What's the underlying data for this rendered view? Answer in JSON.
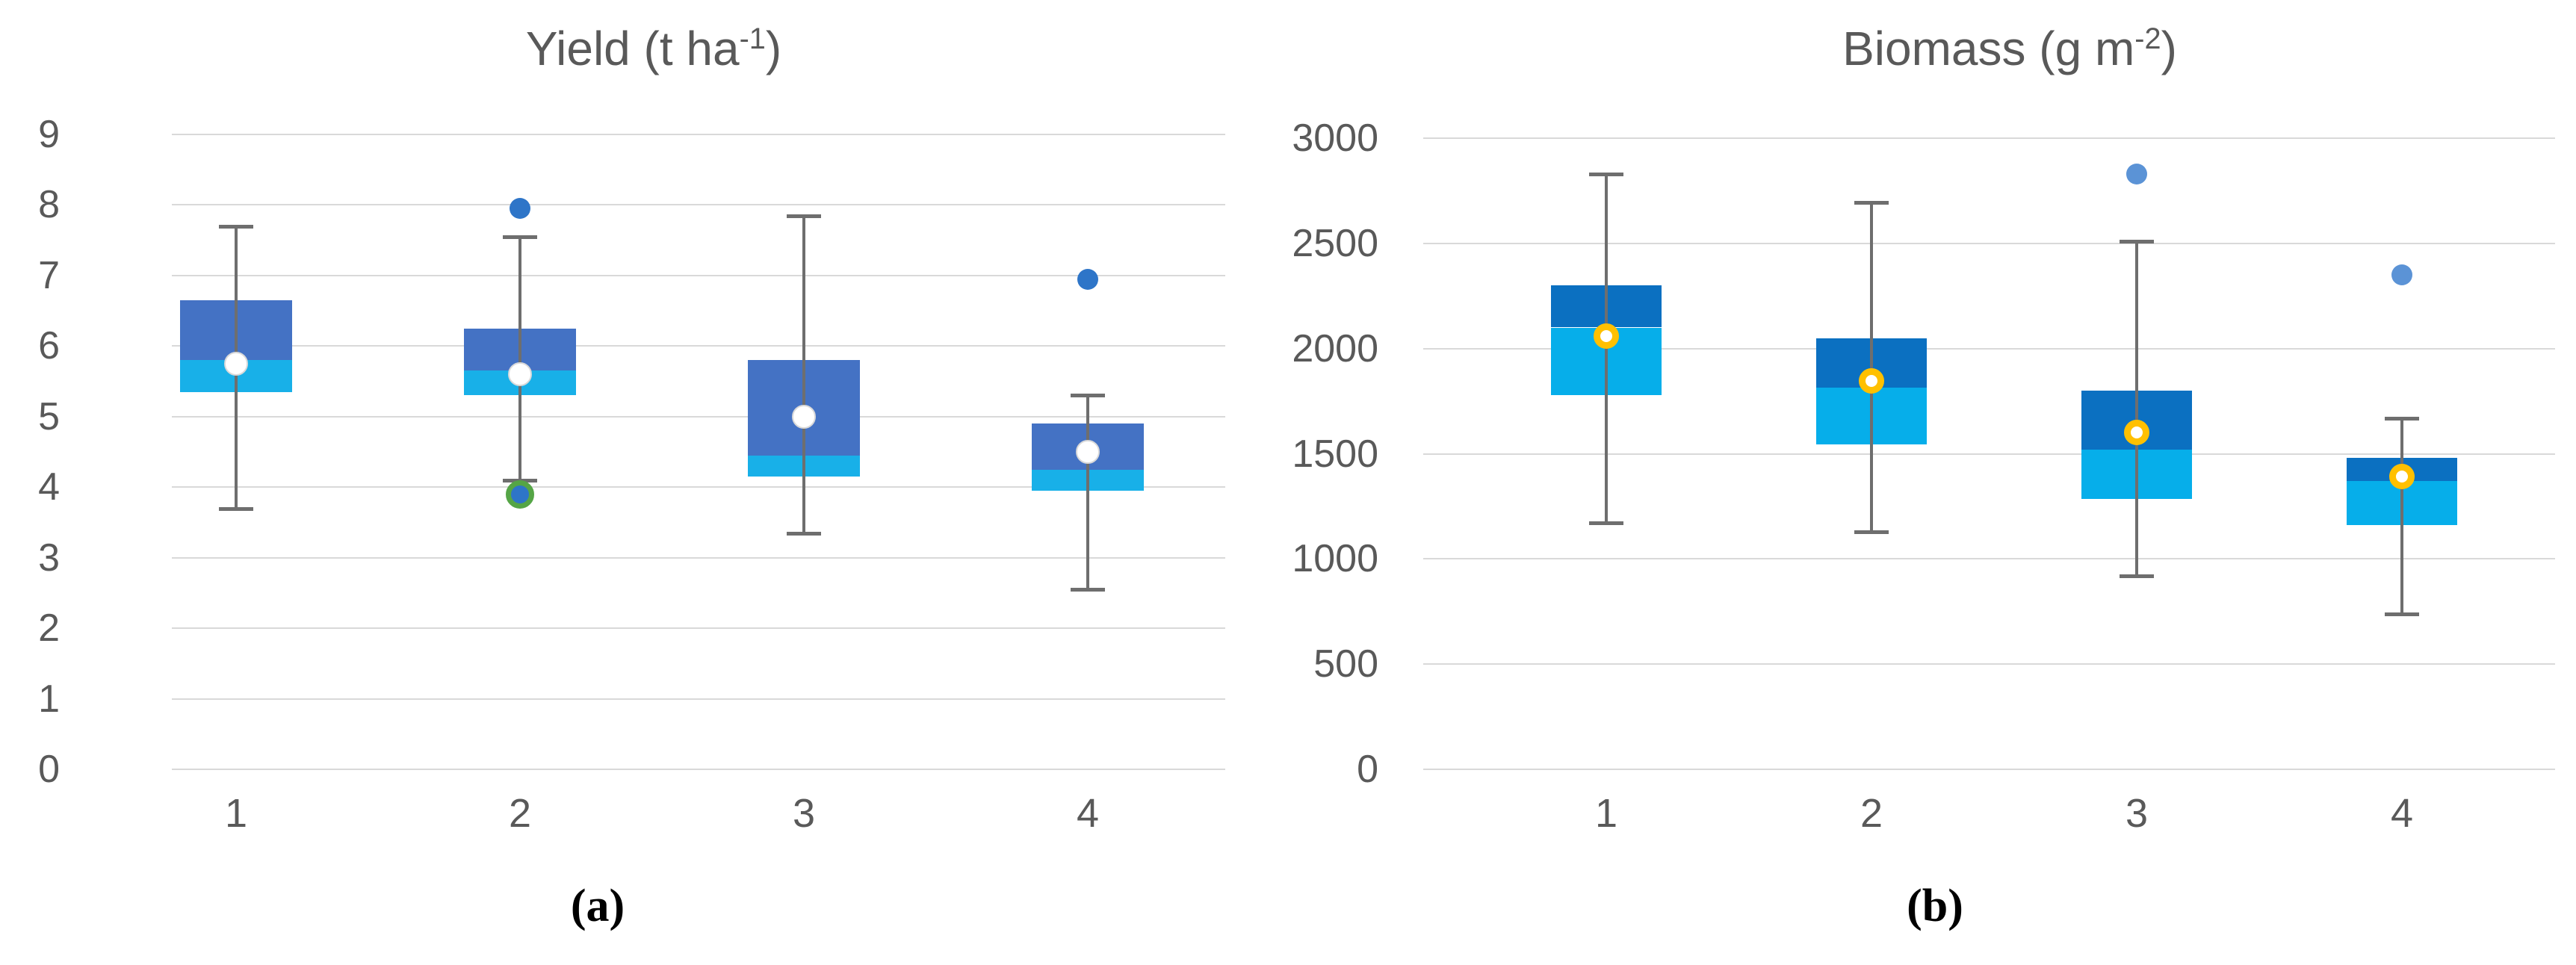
{
  "page": {
    "background": "#ffffff",
    "gridline_color": "#d9d9d9",
    "axis_text_color": "#595959"
  },
  "chart_data": [
    {
      "id": "a",
      "type": "box",
      "title": {
        "main": "Yield (t ha",
        "sup": "-1",
        "end": ")",
        "full": "Yield (t ha⁻¹)"
      },
      "panel_label": "(a)",
      "ylim": [
        0,
        9
      ],
      "ytick_step": 1,
      "yticks": [
        9,
        8,
        7,
        6,
        5,
        4,
        3,
        2,
        1,
        0
      ],
      "categories": [
        "1",
        "2",
        "3",
        "4"
      ],
      "grid": true,
      "legend": false,
      "mean_marker": "white-dot",
      "colors": {
        "upper_box": "#4472C4",
        "lower_box": "#18B0E8",
        "whisker": "#6E6E6E",
        "grid": "#D9D9D9",
        "mean_fill": "#FFFFFF",
        "mean_edge": "#D9D9D9",
        "outlier": "#2E75C8",
        "outlier_ring": "#55A546"
      },
      "boxes": [
        {
          "category": "1",
          "whisker_low": 3.7,
          "q1": 5.35,
          "median": 5.8,
          "q3": 6.65,
          "whisker_high": 7.7,
          "mean": 5.75,
          "outliers": []
        },
        {
          "category": "2",
          "whisker_low": 4.1,
          "q1": 5.3,
          "median": 5.65,
          "q3": 6.25,
          "whisker_high": 7.55,
          "mean": 5.6,
          "outliers": [
            {
              "value": 7.95,
              "style": "blue"
            },
            {
              "value": 3.9,
              "style": "blue-green-ring"
            }
          ]
        },
        {
          "category": "3",
          "whisker_low": 3.35,
          "q1": 4.15,
          "median": 4.45,
          "q3": 5.8,
          "whisker_high": 7.85,
          "mean": 5.0,
          "outliers": []
        },
        {
          "category": "4",
          "whisker_low": 2.55,
          "q1": 3.95,
          "median": 4.25,
          "q3": 4.9,
          "whisker_high": 5.3,
          "mean": 4.5,
          "outliers": [
            {
              "value": 6.95,
              "style": "blue"
            }
          ]
        }
      ]
    },
    {
      "id": "b",
      "type": "box",
      "title": {
        "main": "Biomass (g m",
        "sup": "-2",
        "end": ")",
        "full": "Biomass (g m⁻²)"
      },
      "panel_label": "(b)",
      "ylim": [
        0,
        3000
      ],
      "ytick_step": 500,
      "yticks": [
        3000,
        2500,
        2000,
        1500,
        1000,
        500,
        0
      ],
      "categories": [
        "1",
        "2",
        "3",
        "4"
      ],
      "grid": true,
      "legend": false,
      "mean_marker": "white-dot-gold-ring",
      "colors": {
        "upper_box": "#0B70C1",
        "lower_box": "#06AEEA",
        "whisker": "#6E6E6E",
        "grid": "#D9D9D9",
        "mean_fill": "#FFFFFF",
        "mean_edge": "#FFC000",
        "outlier": "#5B93D6",
        "outlier_ring": "#5B93D6"
      },
      "boxes": [
        {
          "category": "1",
          "whisker_low": 1170,
          "q1": 1780,
          "median": 2100,
          "q3": 2300,
          "whisker_high": 2830,
          "mean": 2060,
          "outliers": []
        },
        {
          "category": "2",
          "whisker_low": 1130,
          "q1": 1545,
          "median": 1815,
          "q3": 2050,
          "whisker_high": 2695,
          "mean": 1845,
          "outliers": []
        },
        {
          "category": "3",
          "whisker_low": 920,
          "q1": 1285,
          "median": 1520,
          "q3": 1800,
          "whisker_high": 2510,
          "mean": 1600,
          "outliers": [
            {
              "value": 2830,
              "style": "blue"
            }
          ]
        },
        {
          "category": "4",
          "whisker_low": 740,
          "q1": 1160,
          "median": 1370,
          "q3": 1480,
          "whisker_high": 1670,
          "mean": 1390,
          "outliers": [
            {
              "value": 2350,
              "style": "blue"
            }
          ]
        }
      ]
    }
  ]
}
